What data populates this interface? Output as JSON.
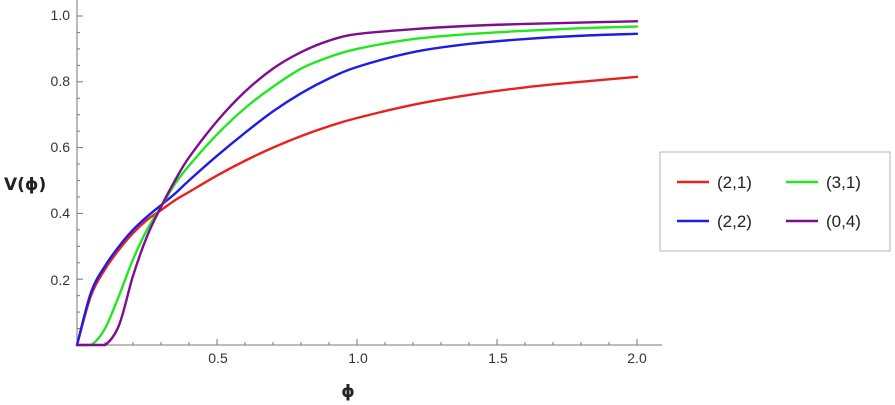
{
  "chart_data": {
    "type": "line",
    "title": "",
    "xlabel": "ϕ",
    "ylabel": "V(ϕ)",
    "xlim": [
      0,
      2.0
    ],
    "ylim": [
      0,
      1.0
    ],
    "x_ticks": [
      "0.5",
      "1.0",
      "1.5",
      "2.0"
    ],
    "y_ticks": [
      "0.2",
      "0.4",
      "0.6",
      "0.8",
      "1.0"
    ],
    "grid": false,
    "legend_position": "right",
    "x": [
      0,
      0.05,
      0.1,
      0.15,
      0.2,
      0.25,
      0.3,
      0.35,
      0.4,
      0.5,
      0.6,
      0.7,
      0.8,
      0.9,
      1.0,
      1.2,
      1.4,
      1.6,
      1.8,
      2.0
    ],
    "series": [
      {
        "name": "(2,1)",
        "color": "#e8211d",
        "values": [
          0,
          0.15,
          0.23,
          0.29,
          0.34,
          0.38,
          0.41,
          0.44,
          0.465,
          0.515,
          0.56,
          0.6,
          0.635,
          0.665,
          0.69,
          0.73,
          0.76,
          0.783,
          0.8,
          0.815
        ]
      },
      {
        "name": "(3,1)",
        "color": "#22e61f",
        "values": [
          0,
          0.0,
          0.05,
          0.15,
          0.26,
          0.35,
          0.42,
          0.49,
          0.545,
          0.64,
          0.72,
          0.785,
          0.84,
          0.875,
          0.9,
          0.93,
          0.945,
          0.955,
          0.963,
          0.968
        ]
      },
      {
        "name": "(2,2)",
        "color": "#1d1de6",
        "values": [
          0,
          0.16,
          0.24,
          0.3,
          0.35,
          0.39,
          0.425,
          0.46,
          0.5,
          0.575,
          0.645,
          0.71,
          0.765,
          0.81,
          0.845,
          0.89,
          0.915,
          0.93,
          0.94,
          0.946
        ]
      },
      {
        "name": "(0,4)",
        "color": "#7e0e8e",
        "values": [
          0,
          0.0,
          0.0,
          0.06,
          0.21,
          0.33,
          0.42,
          0.5,
          0.57,
          0.68,
          0.77,
          0.84,
          0.89,
          0.925,
          0.945,
          0.96,
          0.97,
          0.976,
          0.98,
          0.984
        ]
      }
    ]
  }
}
